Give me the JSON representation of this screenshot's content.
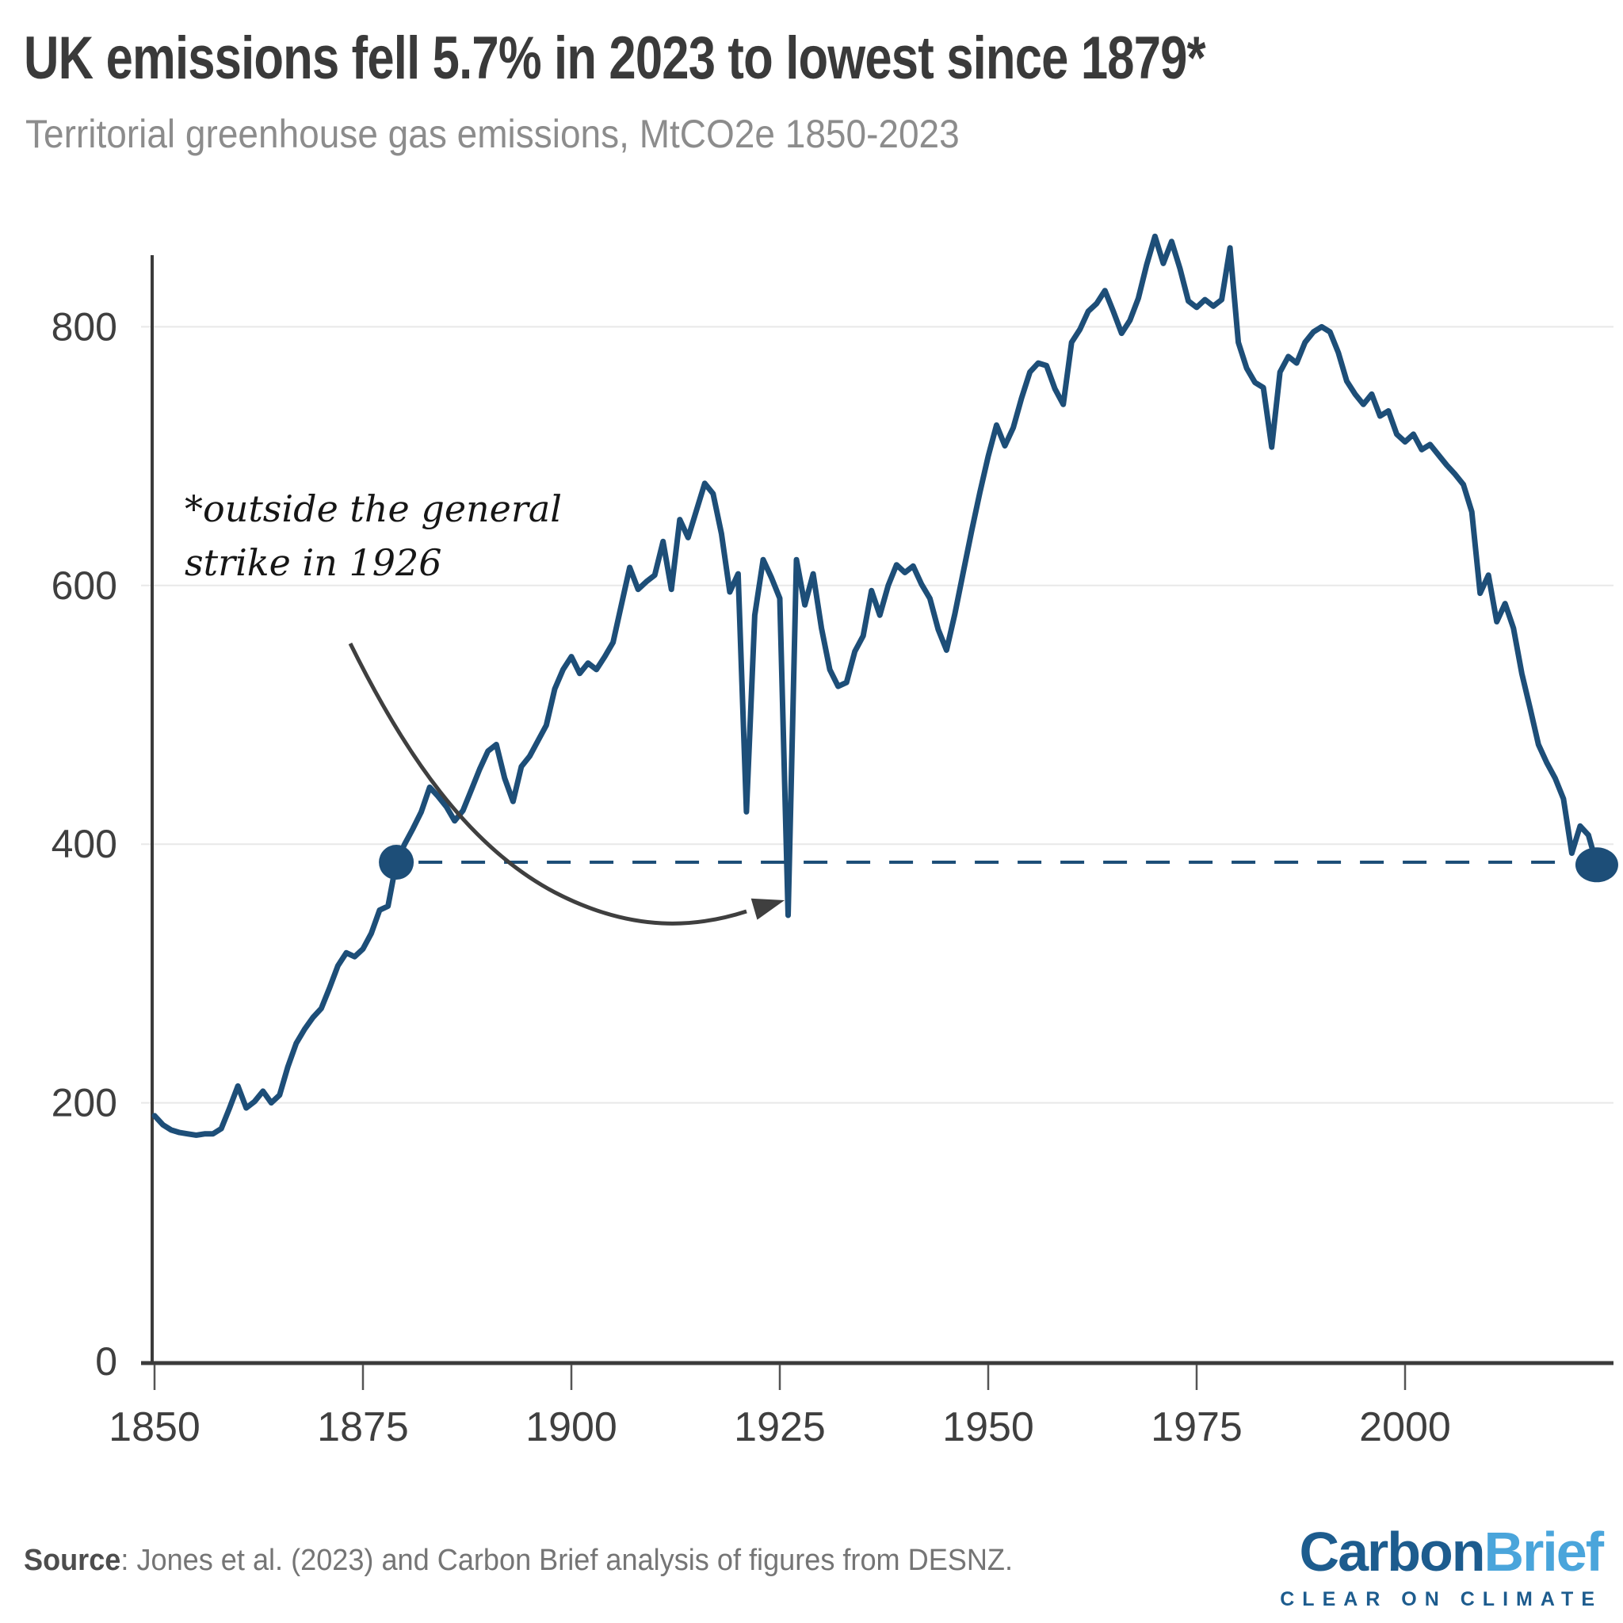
{
  "header": {
    "title": "UK emissions fell 5.7% in 2023 to lowest since 1879*",
    "subtitle": "Territorial greenhouse gas emissions, MtCO2e 1850-2023"
  },
  "annotation": {
    "line1": "*outside the general",
    "line2": "strike in 1926"
  },
  "footer": {
    "source_label": "Source",
    "source_rest": ": Jones et al. (2023) and Carbon Brief analysis of figures from DESNZ."
  },
  "logo": {
    "carbon": "Carbon",
    "brief": "Brief",
    "tagline": "CLEAR ON CLIMATE",
    "carbon_color": "#1d5c8e",
    "brief_color": "#4aa5db"
  },
  "colors": {
    "line": "#1d4e78",
    "axis": "#3b3b3b",
    "grid": "#e8e8e8",
    "tick_label": "#3f3f3f",
    "arrow": "#3f3f3f"
  },
  "chart_data": {
    "type": "line",
    "title": "UK territorial greenhouse gas emissions",
    "xlabel": "",
    "ylabel": "MtCO2e",
    "unit": "MtCO2e",
    "start_year": 1850,
    "end_year": 2023,
    "xlim": [
      1850,
      2023
    ],
    "ylim": [
      0,
      880
    ],
    "x_ticks": [
      1850,
      1875,
      1900,
      1925,
      1950,
      1975,
      2000
    ],
    "y_ticks": [
      0,
      200,
      400,
      600,
      800
    ],
    "grid": "horizontal",
    "values": [
      190,
      183,
      179,
      177,
      176,
      175,
      176,
      176,
      180,
      196,
      213,
      196,
      201,
      209,
      200,
      206,
      228,
      246,
      257,
      266,
      273,
      289,
      306,
      316,
      313,
      319,
      331,
      349,
      352,
      386,
      400,
      412,
      425,
      444,
      437,
      429,
      418,
      426,
      442,
      458,
      472,
      477,
      451,
      433,
      460,
      468,
      480,
      492,
      520,
      535,
      545,
      532,
      540,
      535,
      545,
      556,
      585,
      614,
      597,
      603,
      608,
      634,
      597,
      651,
      637,
      658,
      679,
      671,
      640,
      595,
      609,
      425,
      577,
      620,
      606,
      590,
      345,
      620,
      585,
      609,
      567,
      535,
      522,
      525,
      549,
      561,
      596,
      577,
      600,
      616,
      610,
      615,
      601,
      590,
      566,
      550,
      578,
      610,
      642,
      672,
      700,
      724,
      708,
      722,
      745,
      765,
      772,
      770,
      752,
      740,
      788,
      798,
      812,
      818,
      828,
      812,
      795,
      805,
      822,
      848,
      870,
      849,
      866,
      845,
      820,
      815,
      821,
      816,
      821,
      861,
      788,
      768,
      757,
      753,
      707,
      765,
      777,
      772,
      788,
      796,
      800,
      796,
      780,
      758,
      748,
      740,
      748,
      731,
      735,
      717,
      711,
      717,
      705,
      709,
      701,
      693,
      686,
      678,
      657,
      594,
      608,
      572,
      586,
      567,
      532,
      505,
      477,
      463,
      451,
      435,
      393,
      414,
      407,
      384
    ],
    "markers": [
      {
        "year": 1879,
        "value": 386
      },
      {
        "year": 2023,
        "value": 384
      }
    ],
    "reference_line": {
      "style": "dashed",
      "value": 386,
      "from_year": 1879,
      "to_year": 2023
    }
  }
}
